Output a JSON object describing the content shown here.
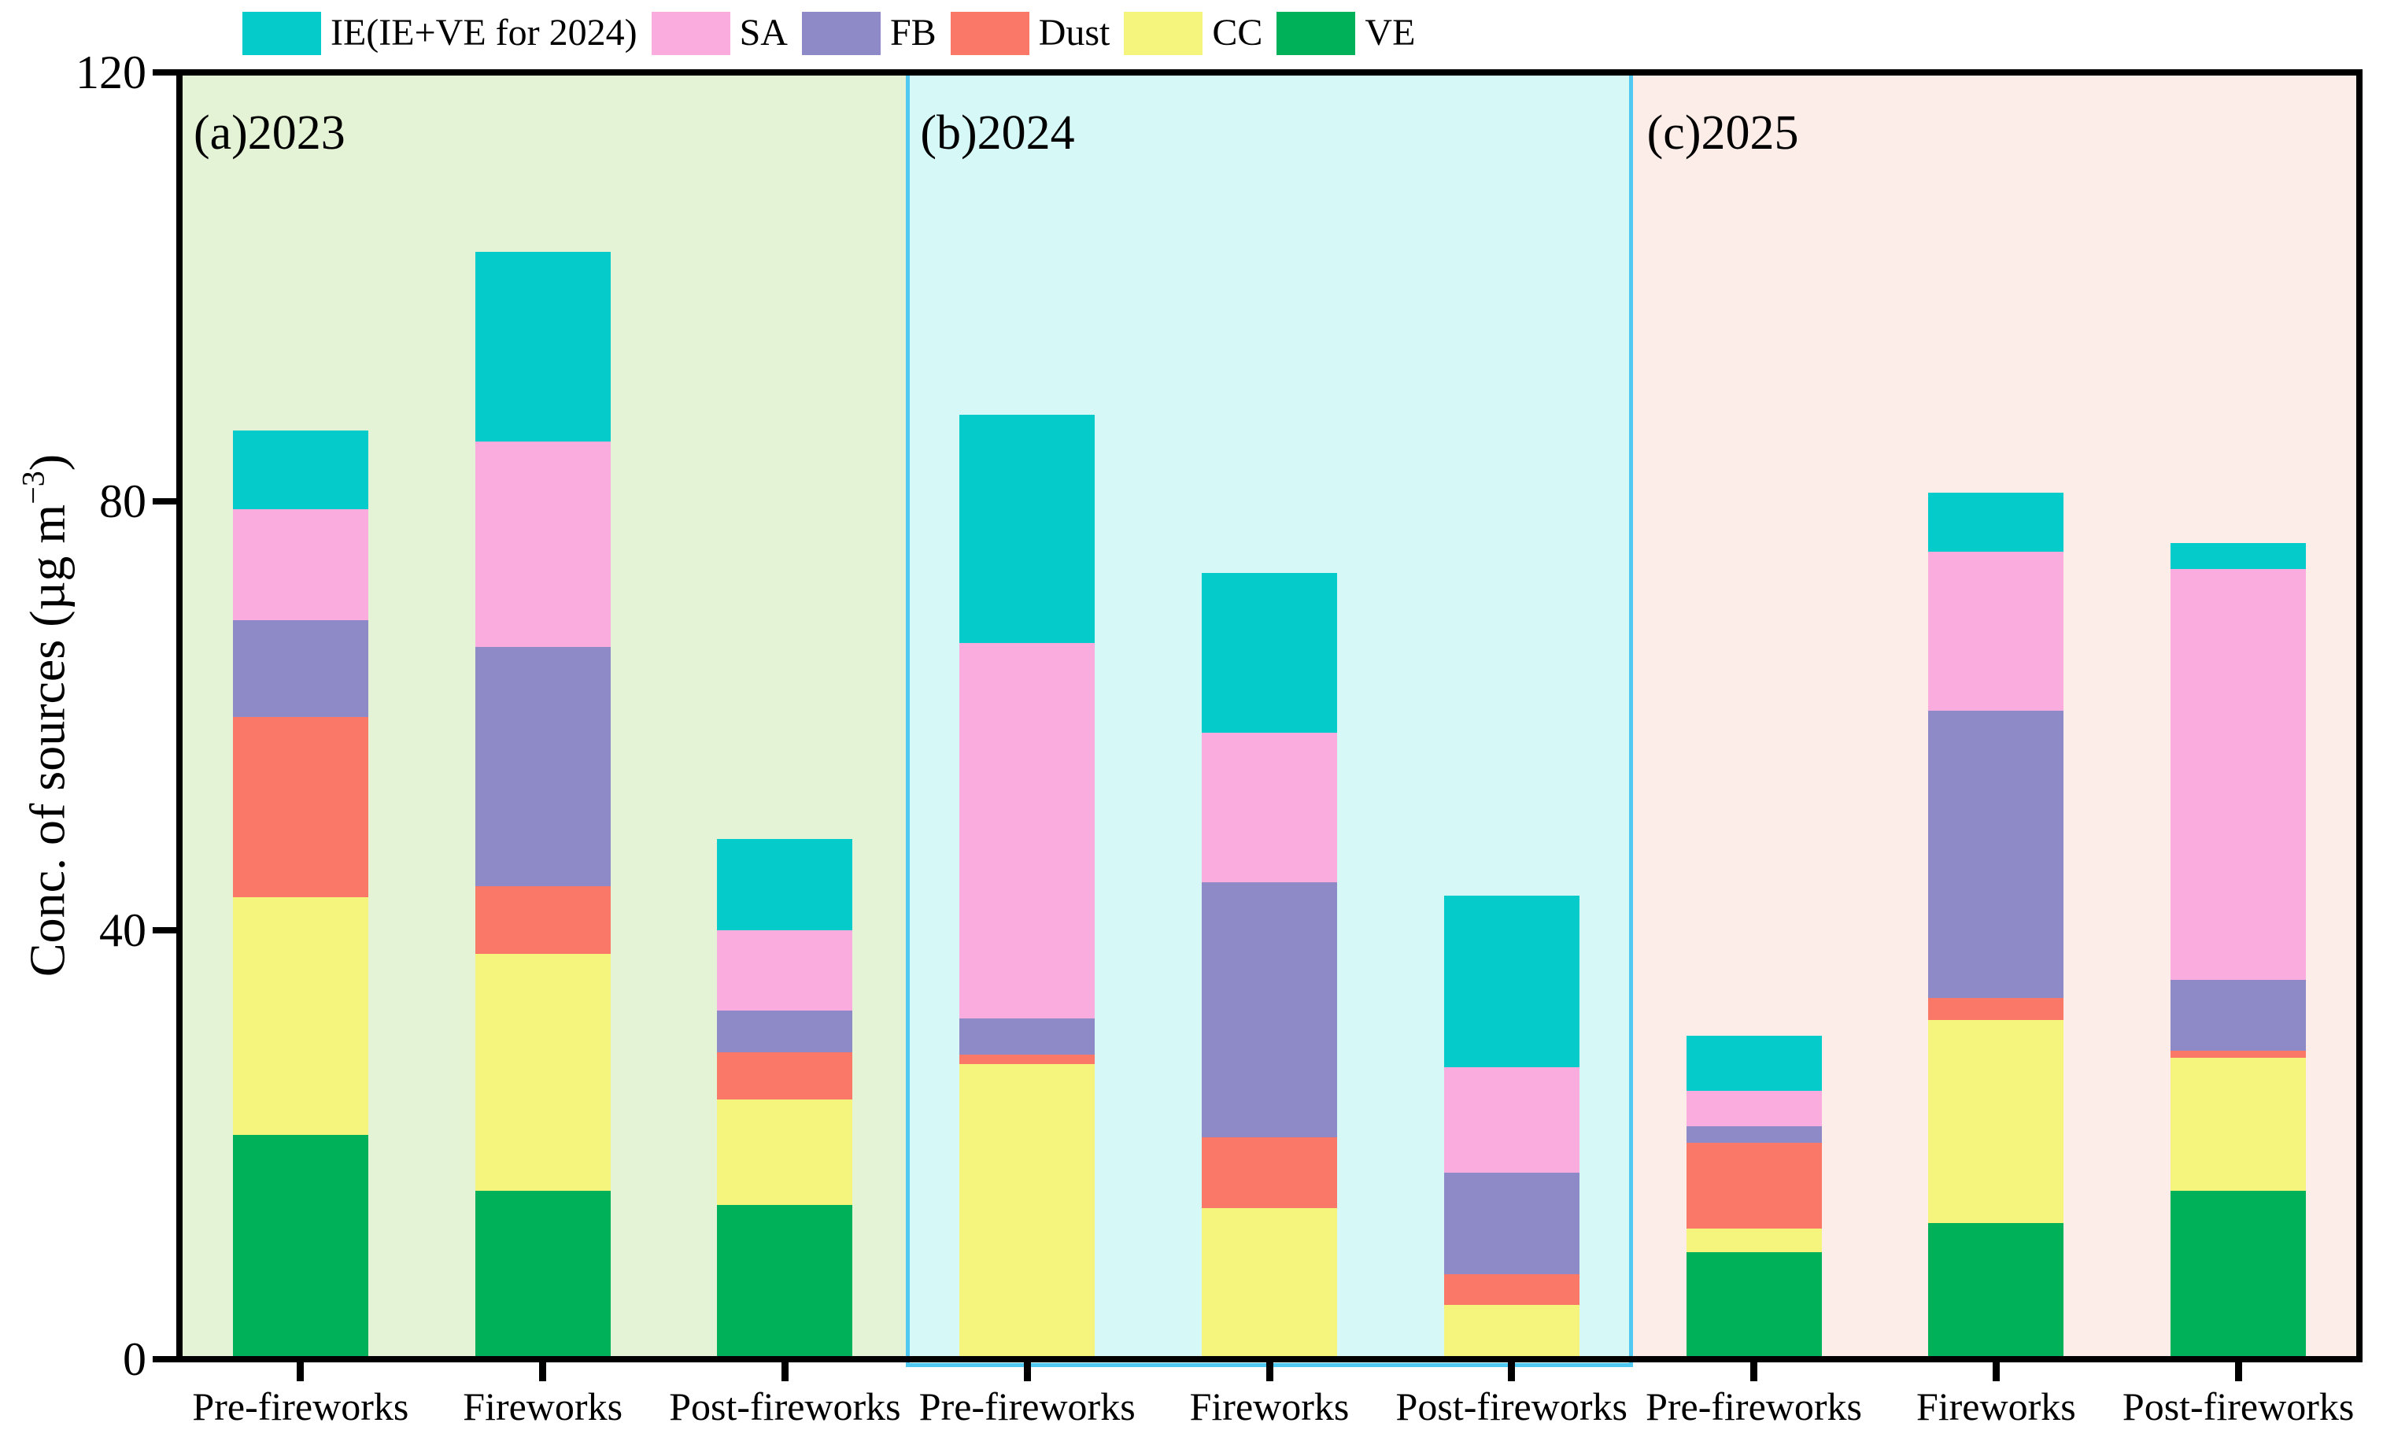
{
  "chart_data": {
    "type": "bar",
    "stacked": true,
    "title": "",
    "xlabel": "",
    "ylabel": "Conc. of sources (µg m⁻³)",
    "ylabel_parts": {
      "main": "Conc. of sources (µg m",
      "sup": "−3",
      "close": ")"
    },
    "ylim": [
      0,
      120
    ],
    "yticks": [
      0,
      40,
      80,
      120
    ],
    "grid": false,
    "legend_position": "top-left",
    "stack_order": [
      "VE",
      "CC",
      "Dust",
      "FB",
      "SA",
      "IE"
    ],
    "colors": {
      "IE": "#05CCCB",
      "SA": "#FBACDE",
      "FB": "#8E8AC8",
      "Dust": "#FA7868",
      "CC": "#F5F57D",
      "VE": "#01B159"
    },
    "legend": [
      {
        "key": "IE",
        "label": "IE(IE+VE for 2024)"
      },
      {
        "key": "SA",
        "label": "SA"
      },
      {
        "key": "FB",
        "label": "FB"
      },
      {
        "key": "Dust",
        "label": "Dust"
      },
      {
        "key": "CC",
        "label": "CC"
      },
      {
        "key": "VE",
        "label": "VE"
      }
    ],
    "panels": [
      {
        "label": "(a)2023",
        "background": "#E4F2D6",
        "border_color": null,
        "categories": [
          "Pre-fireworks",
          "Fireworks",
          "Post-fireworks"
        ],
        "values": {
          "VE": [
            20.9,
            15.7,
            14.4
          ],
          "CC": [
            22.2,
            22.1,
            9.8
          ],
          "Dust": [
            16.8,
            6.3,
            4.4
          ],
          "FB": [
            9.0,
            22.3,
            3.9
          ],
          "SA": [
            10.4,
            19.2,
            7.5
          ],
          "IE": [
            7.3,
            17.7,
            8.5
          ]
        },
        "totals": [
          86.6,
          103.3,
          48.5
        ]
      },
      {
        "label": "(b)2024",
        "background": "#D6F9F8",
        "border_color": "#4FC9F1",
        "categories": [
          "Pre-fireworks",
          "Fireworks",
          "Post-fireworks"
        ],
        "values": {
          "VE": [
            0.0,
            0.0,
            0.0
          ],
          "CC": [
            27.5,
            14.1,
            5.1
          ],
          "Dust": [
            0.9,
            6.6,
            2.8
          ],
          "FB": [
            3.4,
            23.8,
            9.5
          ],
          "SA": [
            35.0,
            13.9,
            9.8
          ],
          "IE": [
            21.3,
            14.9,
            16.0
          ]
        },
        "totals": [
          88.1,
          73.3,
          43.2
        ]
      },
      {
        "label": "(c)2025",
        "background": "#FDEDE8",
        "border_color": null,
        "categories": [
          "Pre-fireworks",
          "Fireworks",
          "Post-fireworks"
        ],
        "values": {
          "VE": [
            10.0,
            12.7,
            15.7
          ],
          "CC": [
            2.2,
            18.9,
            12.4
          ],
          "Dust": [
            8.0,
            2.1,
            0.7
          ],
          "FB": [
            1.5,
            26.8,
            6.6
          ],
          "SA": [
            3.3,
            14.8,
            38.3
          ],
          "IE": [
            5.2,
            5.5,
            2.4
          ]
        },
        "totals": [
          30.2,
          80.8,
          76.1
        ]
      }
    ]
  }
}
